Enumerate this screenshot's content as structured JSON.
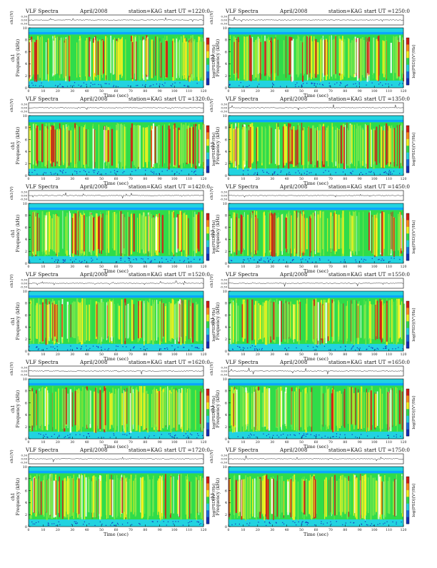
{
  "figure": {
    "common": {
      "title_left": "VLF  Spectra",
      "date": "April/2008",
      "station": "station=KAG",
      "start_prefix": "start  UT  =",
      "xlabel": "Time  (sec)",
      "ylabel_wave": "ch1(V)",
      "ylabel_spec_top": "ch1",
      "ylabel_spec": "Frequency  (kHz)",
      "cbar_label": "log(PSD)(V²/Hz)"
    }
  },
  "colors": {
    "low": "#1530b8",
    "cyan": "#22d3e0",
    "green": "#2fdc4a",
    "yellow": "#f4f21e",
    "red": "#d42015",
    "white": "#ffffff",
    "trace": "#222222"
  },
  "chart_data": [
    {
      "type": "heatmap",
      "panel": "1220",
      "start_ut": "1220:0",
      "xlim": [
        0,
        120
      ],
      "ylim": [
        0,
        10
      ],
      "xticks": [
        0,
        10,
        20,
        30,
        40,
        50,
        60,
        70,
        80,
        90,
        100,
        110,
        120
      ],
      "yticks": [
        0,
        2,
        4,
        6,
        8,
        10
      ],
      "wave_yticks": [
        "0.30",
        "0.00",
        "-0.30"
      ],
      "intensity": 0.62
    },
    {
      "type": "heatmap",
      "panel": "1250",
      "start_ut": "1250:0",
      "xlim": [
        0,
        120
      ],
      "ylim": [
        0,
        10
      ],
      "xticks": [
        0,
        10,
        20,
        30,
        40,
        50,
        60,
        70,
        80,
        90,
        100,
        110,
        120
      ],
      "yticks": [
        0,
        2,
        4,
        6,
        8,
        10
      ],
      "wave_yticks": [
        "0.30",
        "0.00",
        "-0.30"
      ],
      "intensity": 0.55
    },
    {
      "type": "heatmap",
      "panel": "1320",
      "start_ut": "1320:0",
      "xlim": [
        0,
        120
      ],
      "ylim": [
        0,
        10
      ],
      "xticks": [
        0,
        10,
        20,
        30,
        40,
        50,
        60,
        70,
        80,
        90,
        100,
        110,
        120
      ],
      "yticks": [
        0,
        2,
        4,
        6,
        8,
        10
      ],
      "wave_yticks": [
        "0.30",
        "0.00",
        "-0.30"
      ],
      "intensity": 0.5
    },
    {
      "type": "heatmap",
      "panel": "1350",
      "start_ut": "1350:0",
      "xlim": [
        0,
        120
      ],
      "ylim": [
        0,
        10
      ],
      "xticks": [
        0,
        10,
        20,
        30,
        40,
        50,
        60,
        70,
        80,
        90,
        100,
        110,
        120
      ],
      "yticks": [
        0,
        2,
        4,
        6,
        8,
        10
      ],
      "wave_yticks": [
        "0.30",
        "0.00",
        "-0.30"
      ],
      "intensity": 0.5
    },
    {
      "type": "heatmap",
      "panel": "1420",
      "start_ut": "1420:0",
      "xlim": [
        0,
        120
      ],
      "ylim": [
        0,
        10
      ],
      "xticks": [
        0,
        10,
        20,
        30,
        40,
        50,
        60,
        70,
        80,
        90,
        100,
        110,
        120
      ],
      "yticks": [
        0,
        2,
        4,
        6,
        8,
        10
      ],
      "wave_yticks": [
        "0.30",
        "0.00",
        "-0.30"
      ],
      "intensity": 0.45
    },
    {
      "type": "heatmap",
      "panel": "1450",
      "start_ut": "1450:0",
      "xlim": [
        0,
        120
      ],
      "ylim": [
        0,
        10
      ],
      "xticks": [
        0,
        10,
        20,
        30,
        40,
        50,
        60,
        70,
        80,
        90,
        100,
        110,
        120
      ],
      "yticks": [
        0,
        2,
        4,
        6,
        8,
        10
      ],
      "wave_yticks": [
        "0.30",
        "0.00",
        "-0.30"
      ],
      "intensity": 0.45
    },
    {
      "type": "heatmap",
      "panel": "1520",
      "start_ut": "1520:0",
      "xlim": [
        0,
        120
      ],
      "ylim": [
        0,
        10
      ],
      "xticks": [
        0,
        10,
        20,
        30,
        40,
        50,
        60,
        70,
        80,
        90,
        100,
        110,
        120
      ],
      "yticks": [
        0,
        2,
        4,
        6,
        8,
        10
      ],
      "wave_yticks": [
        "0.30",
        "0.00",
        "-0.30"
      ],
      "intensity": 0.35
    },
    {
      "type": "heatmap",
      "panel": "1550",
      "start_ut": "1550:0",
      "xlim": [
        0,
        120
      ],
      "ylim": [
        0,
        10
      ],
      "xticks": [
        0,
        10,
        20,
        30,
        40,
        50,
        60,
        70,
        80,
        90,
        100,
        110,
        120
      ],
      "yticks": [
        0,
        2,
        4,
        6,
        8,
        10
      ],
      "wave_yticks": [
        "0.30",
        "0.00",
        "-0.30"
      ],
      "intensity": 0.3
    },
    {
      "type": "heatmap",
      "panel": "1620",
      "start_ut": "1620:0",
      "xlim": [
        0,
        120
      ],
      "ylim": [
        0,
        10
      ],
      "xticks": [
        0,
        10,
        20,
        30,
        40,
        50,
        60,
        70,
        80,
        90,
        100,
        110,
        120
      ],
      "yticks": [
        0,
        2,
        4,
        6,
        8,
        10
      ],
      "wave_yticks": [
        "0.30",
        "0.00",
        "-0.30"
      ],
      "intensity": 0.32
    },
    {
      "type": "heatmap",
      "panel": "1650",
      "start_ut": "1650:0",
      "xlim": [
        0,
        120
      ],
      "ylim": [
        0,
        10
      ],
      "xticks": [
        0,
        10,
        20,
        30,
        40,
        50,
        60,
        70,
        80,
        90,
        100,
        110,
        120
      ],
      "yticks": [
        0,
        2,
        4,
        6,
        8,
        10
      ],
      "wave_yticks": [
        "0.30",
        "0.00",
        "-0.30"
      ],
      "intensity": 0.35
    },
    {
      "type": "heatmap",
      "panel": "1720",
      "start_ut": "1720:0",
      "xlim": [
        0,
        120
      ],
      "ylim": [
        0,
        10
      ],
      "xticks": [
        0,
        10,
        20,
        30,
        40,
        50,
        60,
        70,
        80,
        90,
        100,
        110,
        120
      ],
      "yticks": [
        0,
        2,
        4,
        6,
        8,
        10
      ],
      "wave_yticks": [
        "0.30",
        "0.00",
        "-0.30"
      ],
      "intensity": 0.3
    },
    {
      "type": "heatmap",
      "panel": "1750",
      "start_ut": "1750:0",
      "xlim": [
        0,
        120
      ],
      "ylim": [
        0,
        10
      ],
      "xticks": [
        0,
        10,
        20,
        30,
        40,
        50,
        60,
        70,
        80,
        90,
        100,
        110,
        120
      ],
      "yticks": [
        0,
        2,
        4,
        6,
        8,
        10
      ],
      "wave_yticks": [
        "0.30",
        "0.00",
        "-0.30"
      ],
      "intensity": 0.32
    }
  ]
}
